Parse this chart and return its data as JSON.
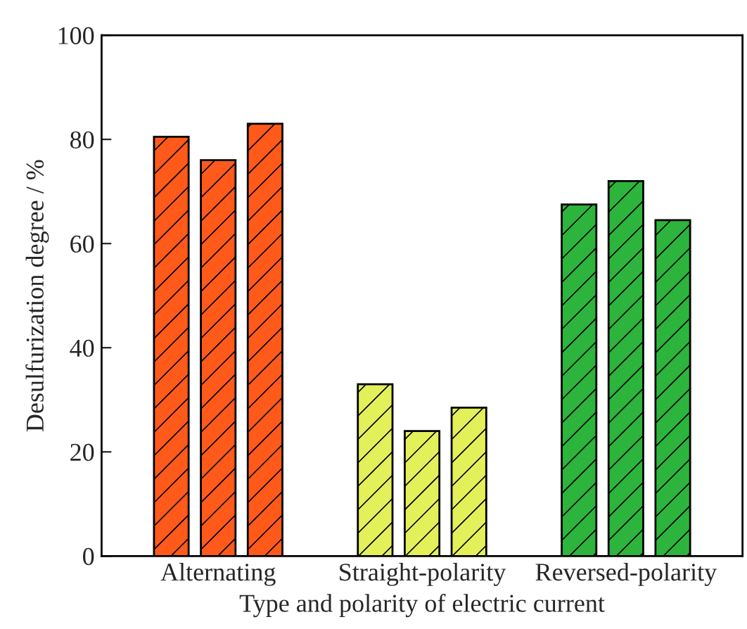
{
  "chart_data": {
    "type": "bar",
    "xlabel": "Type and polarity of electric current",
    "ylabel": "Desulfurization degree / %",
    "categories": [
      "Alternating",
      "Straight-polarity",
      "Reversed-polarity"
    ],
    "series": [
      {
        "colors": [
          "#ff5a1a",
          "#e3f05a",
          "#2db43c"
        ],
        "values": [
          80.5,
          33,
          67.5
        ]
      },
      {
        "colors": [
          "#ff5a1a",
          "#e3f05a",
          "#2db43c"
        ],
        "values": [
          76,
          24,
          72
        ]
      },
      {
        "colors": [
          "#ff5a1a",
          "#e3f05a",
          "#2db43c"
        ],
        "values": [
          83,
          28.5,
          64.5
        ]
      }
    ],
    "ylim": [
      0,
      100
    ],
    "yticks": [
      0,
      20,
      40,
      60,
      80,
      100
    ],
    "grid": false,
    "legend": false
  }
}
